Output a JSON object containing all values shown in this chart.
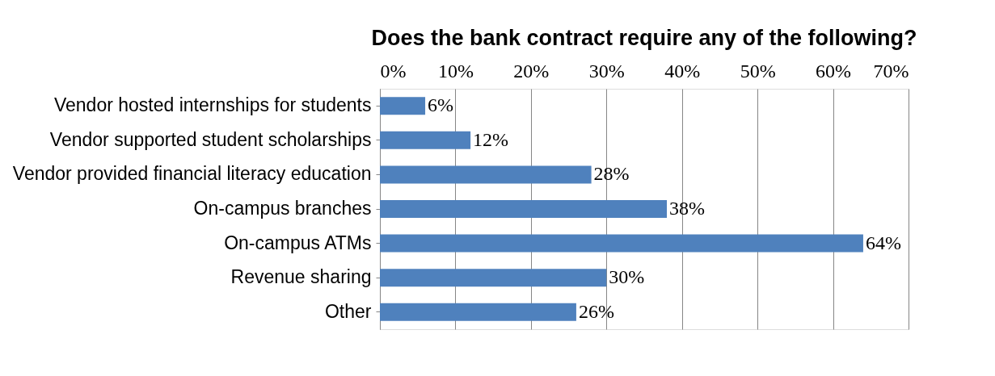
{
  "chart_data": {
    "type": "bar",
    "orientation": "horizontal",
    "title": "Does the bank contract require any of the following?",
    "categories": [
      "Vendor hosted internships for students",
      "Vendor supported student scholarships",
      "Vendor provided financial literacy education",
      "On-campus branches",
      "On-campus ATMs",
      "Revenue sharing",
      "Other"
    ],
    "values": [
      6,
      12,
      28,
      38,
      64,
      30,
      26
    ],
    "value_labels": [
      "6%",
      "12%",
      "28%",
      "38%",
      "64%",
      "30%",
      "26%"
    ],
    "color": "#4f81bd",
    "xlim": [
      0,
      70
    ],
    "xticks": [
      {
        "value": 0,
        "label": "0%"
      },
      {
        "value": 10,
        "label": "10%"
      },
      {
        "value": 20,
        "label": "20%"
      },
      {
        "value": 30,
        "label": "30%"
      },
      {
        "value": 40,
        "label": "40%"
      },
      {
        "value": 50,
        "label": "50%"
      },
      {
        "value": 60,
        "label": "60%"
      },
      {
        "value": 70,
        "label": "70%"
      }
    ],
    "grid": "x"
  }
}
